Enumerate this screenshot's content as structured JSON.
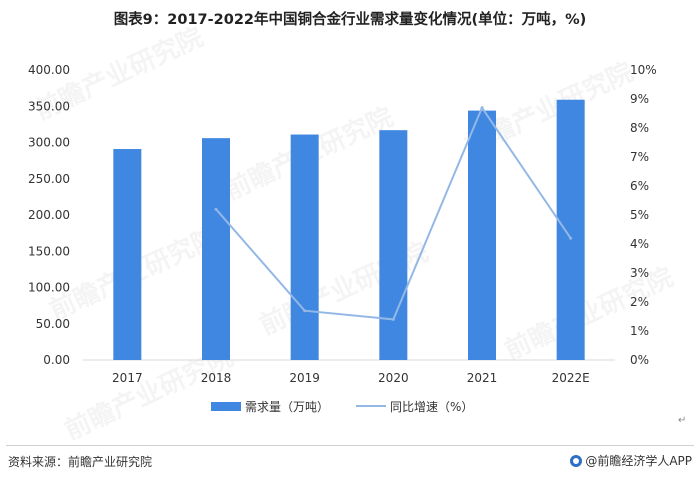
{
  "chart_data": {
    "type": "bar",
    "title": "图表9：2017-2022年中国铜合金行业需求量变化情况(单位：万吨，%)",
    "categories": [
      "2017",
      "2018",
      "2019",
      "2020",
      "2021",
      "2022E"
    ],
    "series": [
      {
        "name": "需求量（万吨）",
        "type": "bar",
        "axis": "left",
        "color": "#3f87e0",
        "values": [
          291,
          306,
          311,
          317,
          344,
          359
        ]
      },
      {
        "name": "同比增速（%）",
        "type": "line",
        "axis": "right",
        "color": "#94b8e6",
        "values": [
          null,
          5.2,
          1.7,
          1.4,
          8.7,
          4.2
        ]
      }
    ],
    "y_left": {
      "min": 0,
      "max": 400,
      "ticks": [
        "0.00",
        "50.00",
        "100.00",
        "150.00",
        "200.00",
        "250.00",
        "300.00",
        "350.00",
        "400.00"
      ]
    },
    "y_right": {
      "min": 0,
      "max": 10,
      "ticks": [
        "0%",
        "1%",
        "2%",
        "3%",
        "4%",
        "5%",
        "6%",
        "7%",
        "8%",
        "9%",
        "10%"
      ]
    },
    "legend": "bottom-center",
    "grid": false
  },
  "footer": {
    "source": "资料来源：前瞻产业研究院",
    "brand": "@前瞻经济学人APP",
    "brand_logo": "qianzhan-logo-icon"
  },
  "watermark": "前瞻产业研究院",
  "return_mark": "↵"
}
